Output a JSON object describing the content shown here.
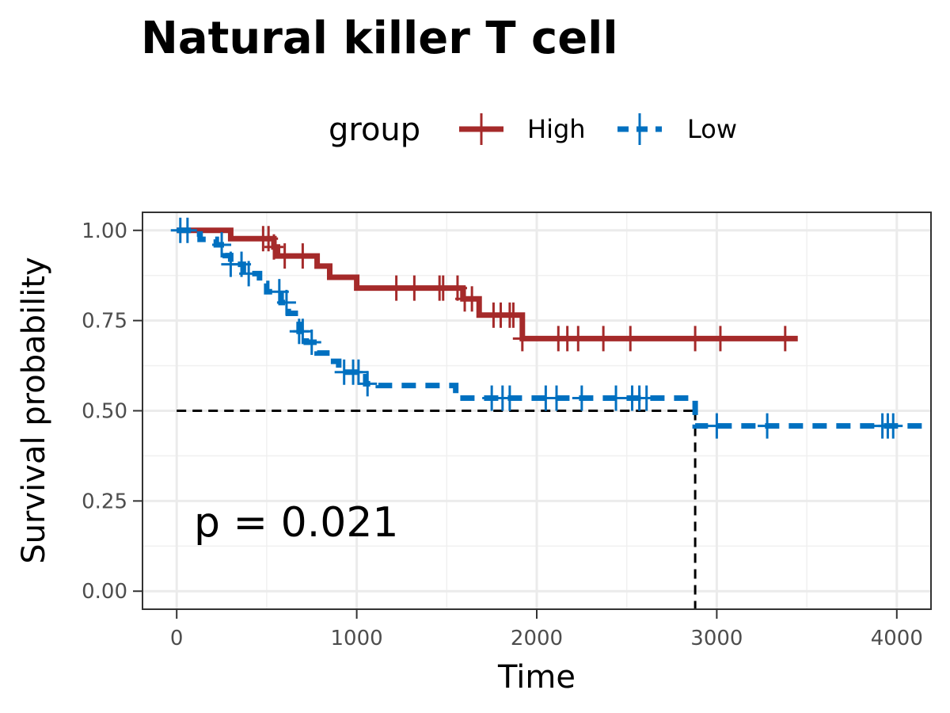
{
  "chart_data": {
    "type": "line",
    "title": "Natural killer T cell",
    "xlabel": "Time",
    "ylabel": "Survival probability",
    "xlim": [
      -190,
      4190
    ],
    "ylim": [
      -0.05,
      1.05
    ],
    "xticks": [
      0,
      1000,
      2000,
      3000,
      4000
    ],
    "yticks": [
      0.0,
      0.25,
      0.5,
      0.75,
      1.0
    ],
    "xtick_labels": [
      "0",
      "1000",
      "2000",
      "3000",
      "4000"
    ],
    "ytick_labels": [
      "0.00",
      "0.25",
      "0.50",
      "0.75",
      "1.00"
    ],
    "grid": true,
    "legend": {
      "title": "group",
      "position": "top"
    },
    "annotation": "p = 0.021",
    "median_line": {
      "y": 0.5,
      "x": 2880
    },
    "series": [
      {
        "name": "High",
        "color": "#a52a2a",
        "dash": "solid",
        "steps": [
          [
            0,
            1.0
          ],
          [
            300,
            0.977
          ],
          [
            540,
            0.954
          ],
          [
            560,
            0.929
          ],
          [
            780,
            0.901
          ],
          [
            850,
            0.87
          ],
          [
            1000,
            0.84
          ],
          [
            1590,
            0.81
          ],
          [
            1680,
            0.765
          ],
          [
            1920,
            0.7
          ],
          [
            3450,
            0.7
          ]
        ],
        "censor_x": [
          480,
          510,
          540,
          600,
          700,
          1220,
          1320,
          1460,
          1480,
          1560,
          1600,
          1640,
          1760,
          1800,
          1850,
          1870,
          1920,
          2120,
          2170,
          2230,
          2370,
          2520,
          2880,
          3020,
          3380
        ]
      },
      {
        "name": "Low",
        "color": "#0070c0",
        "dash": "dashed",
        "steps": [
          [
            0,
            1.0
          ],
          [
            100,
            0.99
          ],
          [
            130,
            0.975
          ],
          [
            220,
            0.96
          ],
          [
            270,
            0.93
          ],
          [
            300,
            0.906
          ],
          [
            370,
            0.88
          ],
          [
            460,
            0.853
          ],
          [
            500,
            0.83
          ],
          [
            580,
            0.8
          ],
          [
            620,
            0.77
          ],
          [
            680,
            0.72
          ],
          [
            720,
            0.69
          ],
          [
            780,
            0.66
          ],
          [
            850,
            0.637
          ],
          [
            900,
            0.607
          ],
          [
            1050,
            0.575
          ],
          [
            1120,
            0.57
          ],
          [
            1550,
            0.535
          ],
          [
            2880,
            0.458
          ],
          [
            4190,
            0.458
          ]
        ],
        "censor_x": [
          20,
          60,
          250,
          300,
          360,
          400,
          570,
          610,
          680,
          700,
          750,
          930,
          980,
          1010,
          1060,
          1750,
          1810,
          1850,
          2050,
          2110,
          2250,
          2440,
          2530,
          2570,
          2610,
          3000,
          3280,
          3920,
          3950,
          3980
        ]
      }
    ]
  }
}
